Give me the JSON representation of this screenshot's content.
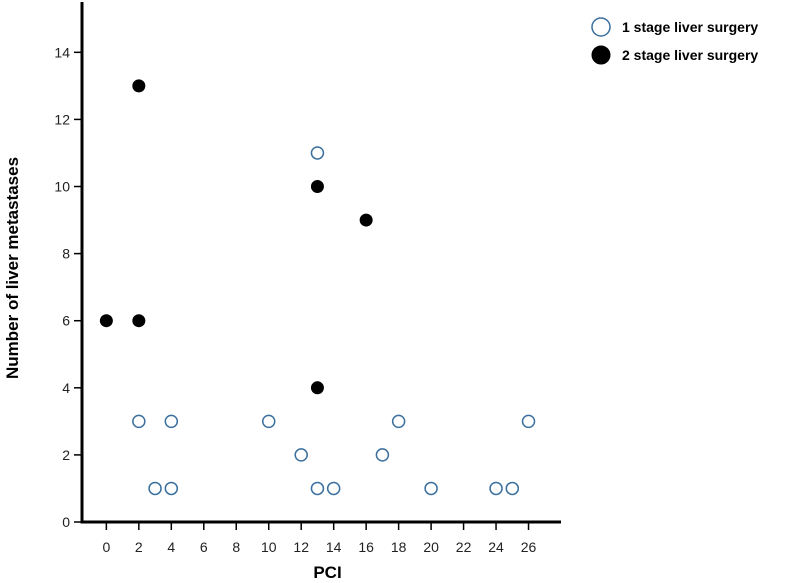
{
  "chart_data": {
    "type": "scatter",
    "xlabel": "PCI",
    "ylabel": "Number of liver metastases",
    "xlim": [
      -1.5,
      28
    ],
    "ylim": [
      0,
      15.5
    ],
    "x_ticks": [
      0,
      2,
      4,
      6,
      8,
      10,
      12,
      14,
      16,
      18,
      20,
      22,
      24,
      26
    ],
    "y_ticks": [
      0,
      2,
      4,
      6,
      8,
      10,
      12,
      14
    ],
    "grid": false,
    "legend_position": "top-right",
    "series": [
      {
        "name": "1 stage liver surgery",
        "marker": "hollow-circle",
        "color": "#3a6f9e",
        "points": [
          {
            "x": 2,
            "y": 3
          },
          {
            "x": 3,
            "y": 1
          },
          {
            "x": 4,
            "y": 3
          },
          {
            "x": 4,
            "y": 1
          },
          {
            "x": 10,
            "y": 3
          },
          {
            "x": 12,
            "y": 2
          },
          {
            "x": 13,
            "y": 11
          },
          {
            "x": 13,
            "y": 1
          },
          {
            "x": 14,
            "y": 1
          },
          {
            "x": 17,
            "y": 2
          },
          {
            "x": 18,
            "y": 3
          },
          {
            "x": 20,
            "y": 1
          },
          {
            "x": 24,
            "y": 1
          },
          {
            "x": 25,
            "y": 1
          },
          {
            "x": 26,
            "y": 3
          }
        ]
      },
      {
        "name": "2 stage liver surgery",
        "marker": "filled-circle",
        "color": "#000000",
        "points": [
          {
            "x": 0,
            "y": 6
          },
          {
            "x": 2,
            "y": 13
          },
          {
            "x": 2,
            "y": 6
          },
          {
            "x": 13,
            "y": 10
          },
          {
            "x": 13,
            "y": 4
          },
          {
            "x": 16,
            "y": 9
          }
        ]
      }
    ]
  }
}
